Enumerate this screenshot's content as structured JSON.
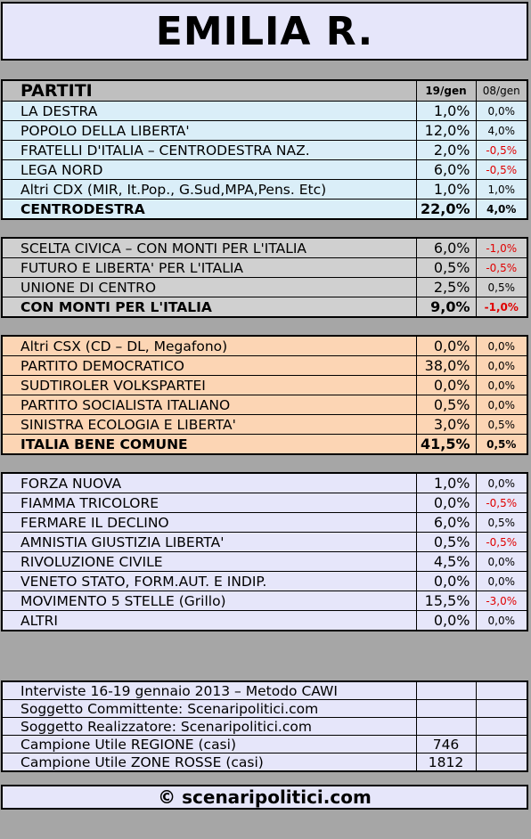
{
  "title": "EMILIA R.",
  "header": {
    "col_party": "PARTITI",
    "col_current": "19/gen",
    "col_diff": "08/gen"
  },
  "centrodestra": {
    "rows": [
      {
        "name": "LA DESTRA",
        "value": "1,0%",
        "diff": "0,0%"
      },
      {
        "name": "POPOLO DELLA LIBERTA'",
        "value": "12,0%",
        "diff": "4,0%"
      },
      {
        "name": "FRATELLI D'ITALIA – CENTRODESTRA NAZ.",
        "value": "2,0%",
        "diff": "-0,5%"
      },
      {
        "name": "LEGA NORD",
        "value": "6,0%",
        "diff": "-0,5%"
      },
      {
        "name": "Altri CDX (MIR, It.Pop., G.Sud,MPA,Pens. Etc)",
        "value": "1,0%",
        "diff": "1,0%"
      }
    ],
    "total": {
      "name": "CENTRODESTRA",
      "value": "22,0%",
      "diff": "4,0%"
    }
  },
  "monti": {
    "rows": [
      {
        "name": "SCELTA CIVICA – CON MONTI PER L'ITALIA",
        "value": "6,0%",
        "diff": "-1,0%"
      },
      {
        "name": "FUTURO E LIBERTA' PER L'ITALIA",
        "value": "0,5%",
        "diff": "-0,5%"
      },
      {
        "name": "UNIONE DI CENTRO",
        "value": "2,5%",
        "diff": "0,5%"
      }
    ],
    "total": {
      "name": "CON MONTI PER L'ITALIA",
      "value": "9,0%",
      "diff": "-1,0%"
    }
  },
  "centrosinistra": {
    "rows": [
      {
        "name": "Altri CSX (CD – DL, Megafono)",
        "value": "0,0%",
        "diff": "0,0%"
      },
      {
        "name": "PARTITO DEMOCRATICO",
        "value": "38,0%",
        "diff": "0,0%"
      },
      {
        "name": "SUDTIROLER VOLKSPARTEI",
        "value": "0,0%",
        "diff": "0,0%"
      },
      {
        "name": "PARTITO SOCIALISTA ITALIANO",
        "value": "0,5%",
        "diff": "0,0%"
      },
      {
        "name": "SINISTRA ECOLOGIA E LIBERTA'",
        "value": "3,0%",
        "diff": "0,5%"
      }
    ],
    "total": {
      "name": "ITALIA BENE COMUNE",
      "value": "41,5%",
      "diff": "0,5%"
    }
  },
  "altri": {
    "rows": [
      {
        "name": "FORZA NUOVA",
        "value": "1,0%",
        "diff": "0,0%"
      },
      {
        "name": "FIAMMA TRICOLORE",
        "value": "0,0%",
        "diff": "-0,5%"
      },
      {
        "name": "FERMARE IL DECLINO",
        "value": "6,0%",
        "diff": "0,5%"
      },
      {
        "name": "AMNISTIA GIUSTIZIA LIBERTA'",
        "value": "0,5%",
        "diff": "-0,5%"
      },
      {
        "name": "RIVOLUZIONE CIVILE",
        "value": "4,5%",
        "diff": "0,0%"
      },
      {
        "name": "VENETO STATO, FORM.AUT. E INDIP.",
        "value": "0,0%",
        "diff": "0,0%"
      },
      {
        "name": "MOVIMENTO 5 STELLE (Grillo)",
        "value": "15,5%",
        "diff": "-3,0%"
      },
      {
        "name": "ALTRI",
        "value": "0,0%",
        "diff": "0,0%"
      }
    ]
  },
  "info": [
    {
      "label": "Interviste 16-19 gennaio 2013 – Metodo CAWI",
      "value": ""
    },
    {
      "label": "Soggetto Committente: Scenaripolitici.com",
      "value": ""
    },
    {
      "label": "Soggetto Realizzatore: Scenaripolitici.com",
      "value": ""
    },
    {
      "label": "Campione Utile REGIONE (casi)",
      "value": "746"
    },
    {
      "label": "Campione Utile ZONE ROSSE (casi)",
      "value": "1812"
    }
  ],
  "footer": "© scenaripolitici.com",
  "colors": {
    "neg": "#e00000",
    "blue": "#daeef8",
    "gray": "#d0d0d0",
    "orange": "#fcd5b4",
    "lavender": "#e6e6fa"
  }
}
